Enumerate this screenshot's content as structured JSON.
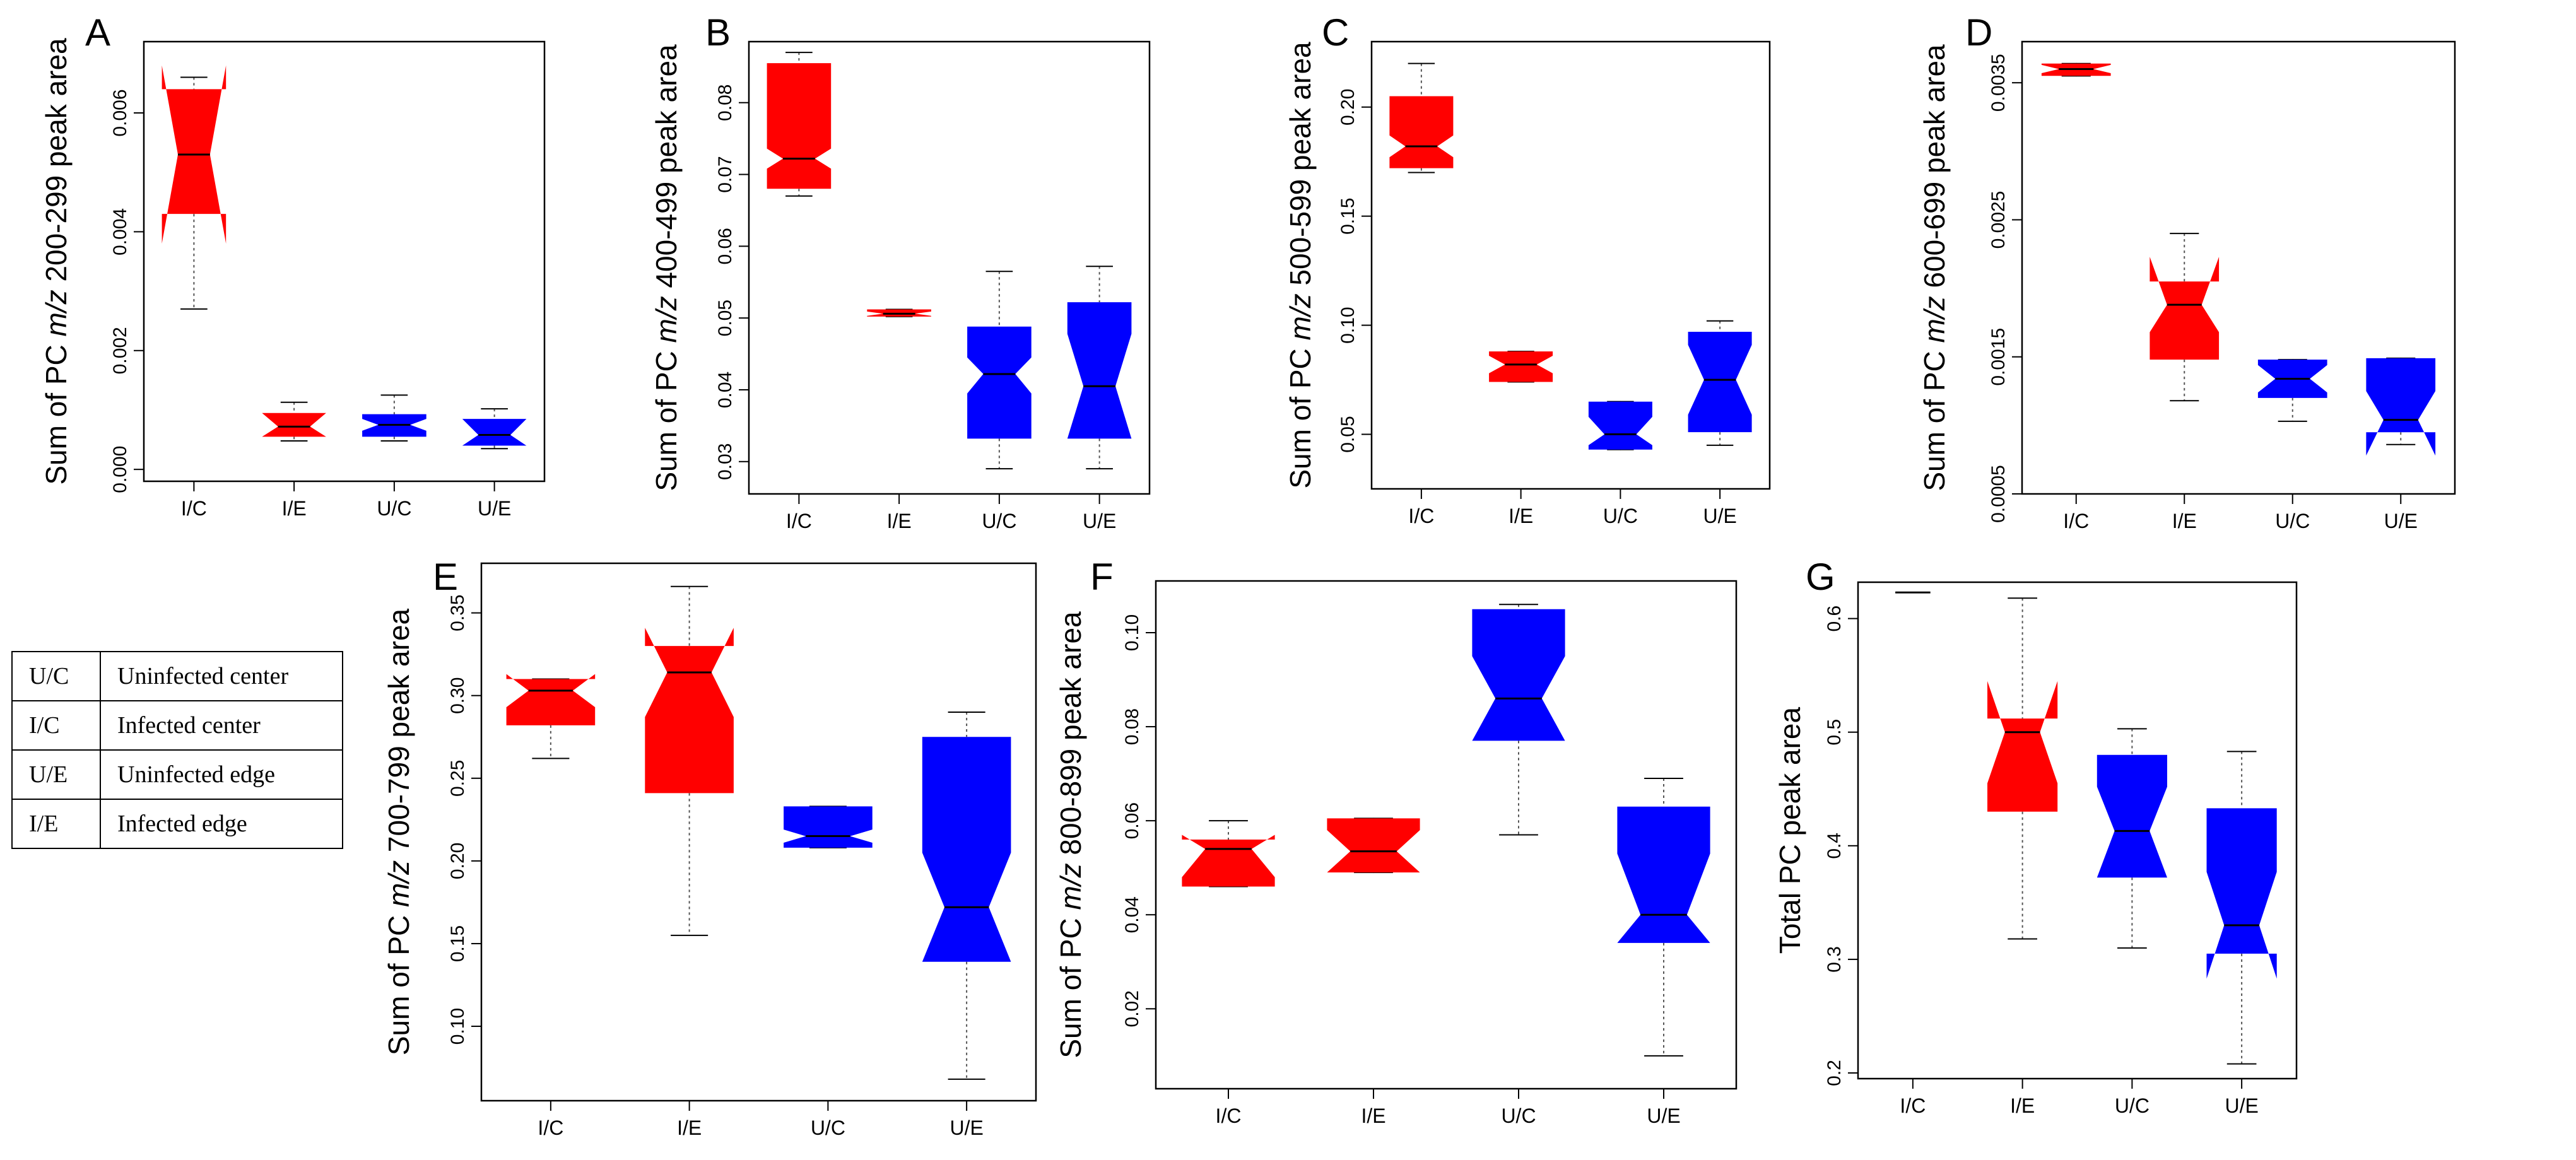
{
  "colors": {
    "infected": "#ff0000",
    "uninfected": "#0000ff",
    "axis": "#000000"
  },
  "legend": [
    {
      "code": "U/C",
      "description": "Uninfected center"
    },
    {
      "code": "I/C",
      "description": "Infected center"
    },
    {
      "code": "U/E",
      "description": "Uninfected edge"
    },
    {
      "code": "I/E",
      "description": "Infected edge"
    }
  ],
  "chart_data": [
    {
      "panel": "A",
      "type": "boxplot",
      "ylabel_pre": "Sum of PC ",
      "ylabel_em": "m/z",
      "ylabel_post": " 200-299 peak area",
      "ylim": [
        -0.0002,
        0.0072
      ],
      "yticks": [
        0.0,
        0.002,
        0.004,
        0.006
      ],
      "ytick_labels": [
        "0.000",
        "0.002",
        "0.004",
        "0.006"
      ],
      "categories": [
        "I/C",
        "I/E",
        "U/C",
        "U/E"
      ],
      "groups": [
        {
          "cat": "I/C",
          "infected": true,
          "whisker_low": 0.0027,
          "q1": 0.0043,
          "median": 0.0053,
          "q3": 0.0064,
          "whisker_high": 0.0066,
          "notch_low": 0.0038,
          "notch_high": 0.0068
        },
        {
          "cat": "I/E",
          "infected": true,
          "whisker_low": 0.00048,
          "q1": 0.00055,
          "median": 0.00072,
          "q3": 0.00095,
          "whisker_high": 0.00113,
          "notch_low": 0.00055,
          "notch_high": 0.00095
        },
        {
          "cat": "U/C",
          "infected": false,
          "whisker_low": 0.00048,
          "q1": 0.00055,
          "median": 0.00075,
          "q3": 0.00093,
          "whisker_high": 0.00125,
          "notch_low": 0.00065,
          "notch_high": 0.00085
        },
        {
          "cat": "U/E",
          "infected": false,
          "whisker_low": 0.00035,
          "q1": 0.0004,
          "median": 0.00058,
          "q3": 0.00085,
          "whisker_high": 0.00102,
          "notch_low": 0.0004,
          "notch_high": 0.00085
        }
      ]
    },
    {
      "panel": "B",
      "type": "boxplot",
      "ylabel_pre": "Sum of PC ",
      "ylabel_em": "m/z",
      "ylabel_post": " 400-499 peak area",
      "ylim": [
        0.0255,
        0.0885
      ],
      "yticks": [
        0.03,
        0.04,
        0.05,
        0.06,
        0.07,
        0.08
      ],
      "ytick_labels": [
        "0.03",
        "0.04",
        "0.05",
        "0.06",
        "0.07",
        "0.08"
      ],
      "categories": [
        "I/C",
        "I/E",
        "U/C",
        "U/E"
      ],
      "groups": [
        {
          "cat": "I/C",
          "infected": true,
          "whisker_low": 0.067,
          "q1": 0.068,
          "median": 0.0722,
          "q3": 0.0855,
          "whisker_high": 0.087,
          "notch_low": 0.0708,
          "notch_high": 0.0736
        },
        {
          "cat": "I/E",
          "infected": true,
          "whisker_low": 0.0502,
          "q1": 0.0502,
          "median": 0.0506,
          "q3": 0.0512,
          "whisker_high": 0.0512,
          "notch_low": 0.0503,
          "notch_high": 0.0509
        },
        {
          "cat": "U/C",
          "infected": false,
          "whisker_low": 0.029,
          "q1": 0.0332,
          "median": 0.0422,
          "q3": 0.0488,
          "whisker_high": 0.0565,
          "notch_low": 0.0395,
          "notch_high": 0.0445
        },
        {
          "cat": "U/E",
          "infected": false,
          "whisker_low": 0.029,
          "q1": 0.0332,
          "median": 0.0405,
          "q3": 0.0522,
          "whisker_high": 0.0572,
          "notch_low": 0.0332,
          "notch_high": 0.0478
        }
      ]
    },
    {
      "panel": "C",
      "type": "boxplot",
      "ylabel_pre": "Sum of PC ",
      "ylabel_em": "m/z",
      "ylabel_post": " 500-599 peak area",
      "ylim": [
        0.025,
        0.23
      ],
      "yticks": [
        0.05,
        0.1,
        0.15,
        0.2
      ],
      "ytick_labels": [
        "0.05",
        "0.10",
        "0.15",
        "0.20"
      ],
      "categories": [
        "I/C",
        "I/E",
        "U/C",
        "U/E"
      ],
      "groups": [
        {
          "cat": "I/C",
          "infected": true,
          "whisker_low": 0.17,
          "q1": 0.172,
          "median": 0.182,
          "q3": 0.205,
          "whisker_high": 0.22,
          "notch_low": 0.177,
          "notch_high": 0.187
        },
        {
          "cat": "I/E",
          "infected": true,
          "whisker_low": 0.074,
          "q1": 0.074,
          "median": 0.082,
          "q3": 0.088,
          "whisker_high": 0.088,
          "notch_low": 0.078,
          "notch_high": 0.086
        },
        {
          "cat": "U/C",
          "infected": false,
          "whisker_low": 0.043,
          "q1": 0.043,
          "median": 0.05,
          "q3": 0.065,
          "whisker_high": 0.065,
          "notch_low": 0.045,
          "notch_high": 0.058
        },
        {
          "cat": "U/E",
          "infected": false,
          "whisker_low": 0.045,
          "q1": 0.051,
          "median": 0.075,
          "q3": 0.097,
          "whisker_high": 0.102,
          "notch_low": 0.059,
          "notch_high": 0.091
        }
      ]
    },
    {
      "panel": "D",
      "type": "boxplot",
      "ylabel_pre": "Sum of PC ",
      "ylabel_em": "m/z",
      "ylabel_post": " 600-699 peak area",
      "ylim": [
        0.0005,
        0.0038
      ],
      "yticks": [
        0.0005,
        0.0015,
        0.0025,
        0.0035
      ],
      "ytick_labels": [
        "0.0005",
        "0.0015",
        "0.0025",
        "0.0035"
      ],
      "categories": [
        "I/C",
        "I/E",
        "U/C",
        "U/E"
      ],
      "groups": [
        {
          "cat": "I/C",
          "infected": true,
          "whisker_low": 0.00355,
          "q1": 0.00355,
          "median": 0.0036,
          "q3": 0.00364,
          "whisker_high": 0.00364,
          "notch_low": 0.00357,
          "notch_high": 0.00363
        },
        {
          "cat": "I/E",
          "infected": true,
          "whisker_low": 0.00118,
          "q1": 0.00148,
          "median": 0.00188,
          "q3": 0.00205,
          "whisker_high": 0.0024,
          "notch_low": 0.00168,
          "notch_high": 0.00223
        },
        {
          "cat": "U/C",
          "infected": false,
          "whisker_low": 0.00103,
          "q1": 0.0012,
          "median": 0.00134,
          "q3": 0.00148,
          "whisker_high": 0.00148,
          "notch_low": 0.00124,
          "notch_high": 0.00144
        },
        {
          "cat": "U/E",
          "infected": false,
          "whisker_low": 0.00086,
          "q1": 0.00095,
          "median": 0.00104,
          "q3": 0.00149,
          "whisker_high": 0.00149,
          "notch_low": 0.00078,
          "notch_high": 0.00125
        }
      ]
    },
    {
      "panel": "E",
      "type": "boxplot",
      "ylabel_pre": "Sum of PC ",
      "ylabel_em": "m/z",
      "ylabel_post": " 700-799 peak area",
      "ylim": [
        0.055,
        0.38
      ],
      "yticks": [
        0.1,
        0.15,
        0.2,
        0.25,
        0.3,
        0.35
      ],
      "ytick_labels": [
        "0.10",
        "0.15",
        "0.20",
        "0.25",
        "0.30",
        "0.35"
      ],
      "categories": [
        "I/C",
        "I/E",
        "U/C",
        "U/E"
      ],
      "groups": [
        {
          "cat": "I/C",
          "infected": true,
          "whisker_low": 0.262,
          "q1": 0.282,
          "median": 0.303,
          "q3": 0.31,
          "whisker_high": 0.31,
          "notch_low": 0.293,
          "notch_high": 0.313
        },
        {
          "cat": "I/E",
          "infected": true,
          "whisker_low": 0.155,
          "q1": 0.241,
          "median": 0.314,
          "q3": 0.33,
          "whisker_high": 0.366,
          "notch_low": 0.287,
          "notch_high": 0.341
        },
        {
          "cat": "U/C",
          "infected": false,
          "whisker_low": 0.208,
          "q1": 0.208,
          "median": 0.215,
          "q3": 0.233,
          "whisker_high": 0.233,
          "notch_low": 0.211,
          "notch_high": 0.219
        },
        {
          "cat": "U/E",
          "infected": false,
          "whisker_low": 0.068,
          "q1": 0.139,
          "median": 0.172,
          "q3": 0.275,
          "whisker_high": 0.29,
          "notch_low": 0.139,
          "notch_high": 0.205
        }
      ]
    },
    {
      "panel": "F",
      "type": "boxplot",
      "ylabel_pre": "Sum of PC ",
      "ylabel_em": "m/z",
      "ylabel_post": " 800-899 peak area",
      "ylim": [
        0.003,
        0.111
      ],
      "yticks": [
        0.02,
        0.04,
        0.06,
        0.08,
        0.1
      ],
      "ytick_labels": [
        "0.02",
        "0.04",
        "0.06",
        "0.08",
        "0.10"
      ],
      "categories": [
        "I/C",
        "I/E",
        "U/C",
        "U/E"
      ],
      "groups": [
        {
          "cat": "I/C",
          "infected": true,
          "whisker_low": 0.046,
          "q1": 0.046,
          "median": 0.054,
          "q3": 0.056,
          "whisker_high": 0.06,
          "notch_low": 0.048,
          "notch_high": 0.057
        },
        {
          "cat": "I/E",
          "infected": true,
          "whisker_low": 0.049,
          "q1": 0.049,
          "median": 0.0535,
          "q3": 0.0605,
          "whisker_high": 0.0605,
          "notch_low": 0.049,
          "notch_high": 0.058
        },
        {
          "cat": "U/C",
          "infected": false,
          "whisker_low": 0.057,
          "q1": 0.077,
          "median": 0.086,
          "q3": 0.105,
          "whisker_high": 0.106,
          "notch_low": 0.077,
          "notch_high": 0.095
        },
        {
          "cat": "U/E",
          "infected": false,
          "whisker_low": 0.01,
          "q1": 0.034,
          "median": 0.04,
          "q3": 0.063,
          "whisker_high": 0.069,
          "notch_low": 0.034,
          "notch_high": 0.053
        }
      ]
    },
    {
      "panel": "G",
      "type": "boxplot",
      "ylabel_pre": "Total PC peak area",
      "ylabel_em": "",
      "ylabel_post": "",
      "ylim": [
        0.195,
        0.632
      ],
      "yticks": [
        0.2,
        0.3,
        0.4,
        0.5,
        0.6
      ],
      "ytick_labels": [
        "0.2",
        "0.3",
        "0.4",
        "0.5",
        "0.6"
      ],
      "categories": [
        "I/C",
        "I/E",
        "U/C",
        "U/E"
      ],
      "groups": [
        {
          "cat": "I/C",
          "infected": true,
          "whisker_low": 0.623,
          "q1": 0.623,
          "median": 0.623,
          "q3": 0.623,
          "whisker_high": 0.623,
          "notch_low": 0.623,
          "notch_high": 0.623
        },
        {
          "cat": "I/E",
          "infected": true,
          "whisker_low": 0.318,
          "q1": 0.43,
          "median": 0.5,
          "q3": 0.512,
          "whisker_high": 0.618,
          "notch_low": 0.455,
          "notch_high": 0.545
        },
        {
          "cat": "U/C",
          "infected": false,
          "whisker_low": 0.31,
          "q1": 0.372,
          "median": 0.413,
          "q3": 0.48,
          "whisker_high": 0.503,
          "notch_low": 0.372,
          "notch_high": 0.452
        },
        {
          "cat": "U/E",
          "infected": false,
          "whisker_low": 0.208,
          "q1": 0.305,
          "median": 0.33,
          "q3": 0.433,
          "whisker_high": 0.483,
          "notch_low": 0.283,
          "notch_high": 0.377
        }
      ]
    }
  ]
}
